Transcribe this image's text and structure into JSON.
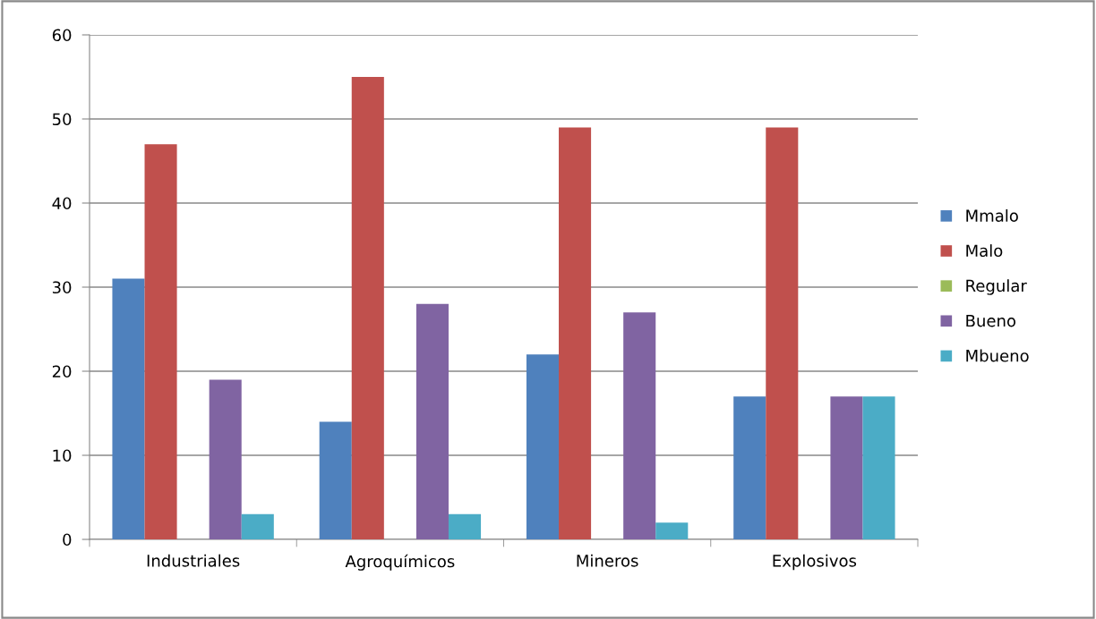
{
  "chart_data": {
    "type": "bar",
    "categories": [
      "Industriales",
      "Agroquímicos",
      "Mineros",
      "Explosivos"
    ],
    "series": [
      {
        "name": "Mmalo",
        "color": "#4f81bd",
        "values": [
          31,
          14,
          22,
          17
        ]
      },
      {
        "name": "Malo",
        "color": "#c0504d",
        "values": [
          47,
          55,
          49,
          49
        ]
      },
      {
        "name": "Regular",
        "color": "#9bbb59",
        "values": [
          0,
          0,
          0,
          0
        ]
      },
      {
        "name": "Bueno",
        "color": "#8064a2",
        "values": [
          19,
          28,
          27,
          17
        ]
      },
      {
        "name": "Mbueno",
        "color": "#4bacc6",
        "values": [
          3,
          3,
          2,
          17
        ]
      }
    ],
    "ylim": [
      0,
      60
    ],
    "yticks": [
      0,
      10,
      20,
      30,
      40,
      50,
      60
    ],
    "grid": "y",
    "legend": "right"
  }
}
